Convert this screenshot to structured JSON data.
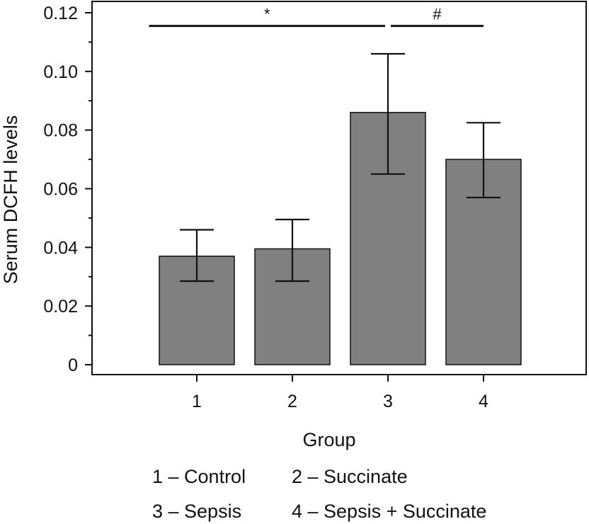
{
  "chart_data": {
    "type": "bar",
    "categories": [
      "1",
      "2",
      "3",
      "4"
    ],
    "values": [
      0.037,
      0.0395,
      0.086,
      0.07
    ],
    "error_bars": {
      "lower": [
        0.0285,
        0.0285,
        0.065,
        0.057
      ],
      "upper": [
        0.046,
        0.0495,
        0.106,
        0.0825
      ]
    },
    "xlabel": "Group",
    "ylabel": "Serum DCFH levels",
    "ylim": [
      0,
      0.12
    ],
    "yticks": [
      "0",
      "0.02",
      "0.04",
      "0.06",
      "0.08",
      "0.10",
      "0.12"
    ],
    "ytick_values": [
      0,
      0.02,
      0.04,
      0.06,
      0.08,
      0.1,
      0.12
    ],
    "grid": false,
    "bar_color": "#808080",
    "significance": [
      {
        "from_category": 0.5,
        "to_category": 2.97,
        "level": 0.1155,
        "label": "*"
      },
      {
        "from_category": 3.03,
        "to_category": 4.0,
        "level": 0.1155,
        "label": "#"
      }
    ],
    "legend_rows": [
      [
        "1 – Control",
        "2 – Succinate"
      ],
      [
        "3 – Sepsis",
        "4 – Sepsis + Succinate"
      ]
    ]
  }
}
